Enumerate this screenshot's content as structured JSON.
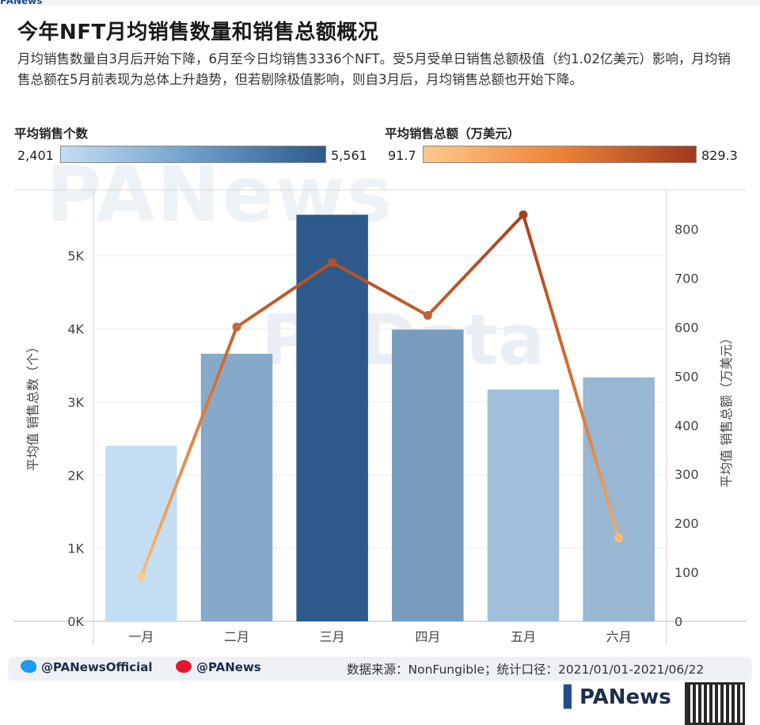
{
  "header": {
    "brand": "PANews",
    "title": "今年NFT月均销售数量和销售总额概况",
    "subtitle": "月均销售数量自3月后开始下降，6月至今日均销售3336个NFT。受5月受单日销售总额极值（约1.02亿美元）影响，月均销售总额在5月前表现为总体上升趋势，但若剔除极值影响，则自3月后，月均销售总额也开始下降。"
  },
  "legend": {
    "count": {
      "title": "平均销售个数",
      "min": "2,401",
      "max": "5,561",
      "colors": [
        "#c3def2",
        "#2d5a8a"
      ]
    },
    "amount": {
      "title": "平均销售总额（万美元）",
      "min": "91.7",
      "max": "829.3",
      "colors": [
        "#fcc98a",
        "#9e3a1c"
      ]
    }
  },
  "watermarks": {
    "main": "PANews",
    "secondary": "PAData"
  },
  "chart_data": {
    "type": "bar",
    "categories": [
      "一月",
      "二月",
      "三月",
      "四月",
      "五月",
      "六月"
    ],
    "series": [
      {
        "name": "平均销售个数",
        "type": "bar",
        "axis": "left",
        "values": [
          2401,
          3660,
          5561,
          3990,
          3170,
          3336
        ]
      },
      {
        "name": "平均销售总额（万美元）",
        "type": "line",
        "axis": "right",
        "values": [
          91.7,
          600.5,
          732,
          624,
          829.3,
          170
        ]
      }
    ],
    "y_left": {
      "label": "平均值 销售总数（个）",
      "ylim": [
        0,
        5900
      ],
      "ticks": [
        0,
        1000,
        2000,
        3000,
        4000,
        5000
      ],
      "tick_labels": [
        "0K",
        "1K",
        "2K",
        "3K",
        "4K",
        "5K"
      ]
    },
    "y_right": {
      "label": "平均值 销售总额（万美元）",
      "ylim": [
        0,
        880
      ],
      "ticks": [
        0,
        100,
        200,
        300,
        400,
        500,
        600,
        700,
        800
      ],
      "tick_labels": [
        "0",
        "100",
        "200",
        "300",
        "400",
        "500",
        "600",
        "700",
        "800"
      ]
    },
    "grid": true,
    "legend_position": "top"
  },
  "footer": {
    "twitter": "@PANewsOfficial",
    "weibo": "@PANews",
    "source": "数据来源：NonFungible；统计口径：2021/01/01-2021/06/22",
    "logo": "PANews"
  }
}
